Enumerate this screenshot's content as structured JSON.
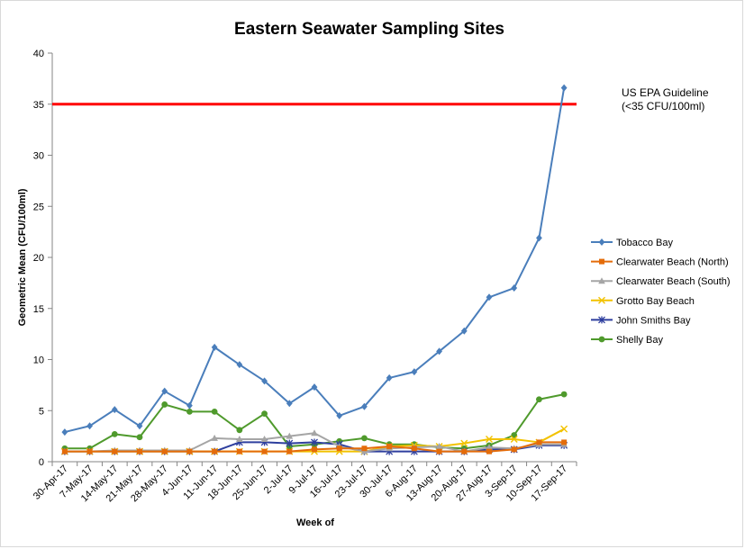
{
  "chart_data": {
    "type": "line",
    "title": "Eastern Seawater Sampling Sites",
    "xlabel": "Week of",
    "ylabel": "Geometric Mean (CFU/100ml)",
    "ylim": [
      0,
      40
    ],
    "yticks": [
      0,
      5,
      10,
      15,
      20,
      25,
      30,
      35,
      40
    ],
    "grid": false,
    "legend_position": "right",
    "categories": [
      "30-Apr-17",
      "7-May-17",
      "14-May-17",
      "21-May-17",
      "28-May-17",
      "4-Jun-17",
      "11-Jun-17",
      "18-Jun-17",
      "25-Jun-17",
      "2-Jul-17",
      "9-Jul-17",
      "16-Jul-17",
      "23-Jul-17",
      "30-Jul-17",
      "6-Aug-17",
      "13-Aug-17",
      "20-Aug-17",
      "27-Aug-17",
      "3-Sep-17",
      "10-Sep-17",
      "17-Sep-17"
    ],
    "series": [
      {
        "name": "Tobacco Bay",
        "color": "#4a7ebb",
        "marker": "diamond",
        "values": [
          2.9,
          3.5,
          5.1,
          3.5,
          6.9,
          5.5,
          11.2,
          9.5,
          7.9,
          5.7,
          7.3,
          4.5,
          5.4,
          8.2,
          8.8,
          10.8,
          12.8,
          16.1,
          17.0,
          21.9,
          36.6
        ]
      },
      {
        "name": "Clearwater Beach (North)",
        "color": "#e46c0a",
        "marker": "square",
        "values": [
          1.0,
          1.0,
          1.0,
          1.0,
          1.0,
          1.0,
          1.0,
          1.0,
          1.0,
          1.0,
          1.2,
          1.3,
          1.3,
          1.5,
          1.3,
          1.0,
          1.0,
          1.0,
          1.2,
          1.9,
          1.9
        ]
      },
      {
        "name": "Clearwater Beach (South)",
        "color": "#a5a5a5",
        "marker": "triangle",
        "values": [
          1.0,
          1.0,
          1.1,
          1.1,
          1.1,
          1.1,
          2.3,
          2.2,
          2.2,
          2.5,
          2.8,
          1.5,
          1.0,
          1.3,
          1.4,
          1.5,
          1.0,
          1.4,
          1.3,
          1.7,
          1.7
        ]
      },
      {
        "name": "Grotto Bay Beach",
        "color": "#f2c200",
        "marker": "x",
        "values": [
          1.0,
          1.0,
          1.0,
          1.0,
          1.0,
          1.0,
          1.0,
          1.0,
          1.0,
          1.0,
          1.0,
          1.0,
          1.0,
          1.5,
          1.6,
          1.5,
          1.8,
          2.2,
          2.2,
          1.9,
          3.2
        ]
      },
      {
        "name": "John Smiths Bay",
        "color": "#2e3f9e",
        "marker": "star",
        "values": [
          1.0,
          1.0,
          1.0,
          1.0,
          1.0,
          1.0,
          1.0,
          1.9,
          1.9,
          1.8,
          1.9,
          1.7,
          1.0,
          1.0,
          1.0,
          1.0,
          1.0,
          1.2,
          1.2,
          1.6,
          1.6
        ]
      },
      {
        "name": "Shelly Bay",
        "color": "#4f9a2c",
        "marker": "circle",
        "values": [
          1.3,
          1.3,
          2.7,
          2.4,
          5.6,
          4.9,
          4.9,
          3.1,
          4.7,
          1.5,
          1.7,
          2.0,
          2.3,
          1.7,
          1.7,
          1.4,
          1.3,
          1.6,
          2.6,
          6.1,
          6.6
        ]
      }
    ],
    "reference_line": {
      "value": 35,
      "color": "#ff0000",
      "label_line1": "US EPA Guideline",
      "label_line2": "(<35 CFU/100ml)"
    }
  }
}
